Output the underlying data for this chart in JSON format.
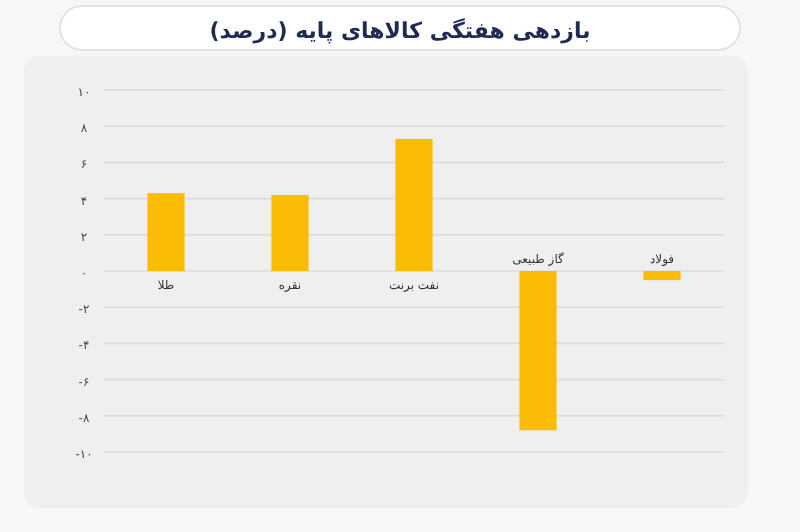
{
  "chart_data": {
    "type": "bar",
    "title": "بازدهی هفتگی کالاهای پایه (درصد)",
    "categories": [
      "طلا",
      "نقره",
      "نفت برنت",
      "گاز طبیعی",
      "فولاد"
    ],
    "values": [
      4.3,
      4.2,
      7.3,
      -8.8,
      -0.5
    ],
    "color": "#fbbc05",
    "ylim": [
      -10,
      10
    ],
    "yticks": [
      {
        "value": 10,
        "label": "۱۰"
      },
      {
        "value": 8,
        "label": "۸"
      },
      {
        "value": 6,
        "label": "۶"
      },
      {
        "value": 4,
        "label": "۴"
      },
      {
        "value": 2,
        "label": "۲"
      },
      {
        "value": 0,
        "label": "۰"
      },
      {
        "value": -2,
        "label": "-۲"
      },
      {
        "value": -4,
        "label": "-۴"
      },
      {
        "value": -6,
        "label": "-۶"
      },
      {
        "value": -8,
        "label": "-۸"
      },
      {
        "value": -10,
        "label": "-۱۰"
      }
    ],
    "grid": "y"
  }
}
